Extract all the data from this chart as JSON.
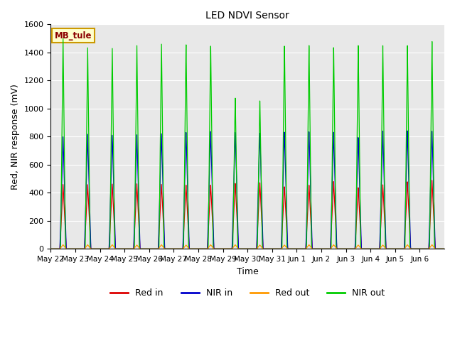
{
  "title": "LED NDVI Sensor",
  "xlabel": "Time",
  "ylabel": "Red, NIR response (mV)",
  "ylim": [
    0,
    1600
  ],
  "label_box": "MB_tule",
  "background_color": "#e8e8e8",
  "legend_entries": [
    "Red in",
    "NIR in",
    "Red out",
    "NIR out"
  ],
  "legend_colors": [
    "#dd0000",
    "#0000cc",
    "#ff9900",
    "#00cc00"
  ],
  "line_colors": {
    "red_in": "#dd0000",
    "nir_in": "#0000cc",
    "red_out": "#ff9900",
    "nir_out": "#00cc00"
  },
  "x_tick_labels": [
    "May 22",
    "May 23",
    "May 24",
    "May 25",
    "May 26",
    "May 27",
    "May 28",
    "May 29",
    "May 30",
    "May 31",
    "Jun 1",
    "Jun 2",
    "Jun 3",
    "Jun 4",
    "Jun 5",
    "Jun 6"
  ],
  "spike_peaks": {
    "red_in": [
      460,
      460,
      465,
      468,
      465,
      460,
      462,
      475,
      480,
      450,
      460,
      485,
      440,
      460,
      480,
      490
    ],
    "nir_in": [
      800,
      820,
      815,
      820,
      830,
      840,
      850,
      845,
      840,
      845,
      845,
      840,
      800,
      845,
      845,
      840
    ],
    "red_out": [
      30,
      30,
      30,
      28,
      30,
      28,
      30,
      30,
      28,
      28,
      30,
      30,
      28,
      28,
      30,
      30
    ],
    "nir_out": [
      1500,
      1440,
      1440,
      1465,
      1480,
      1480,
      1475,
      1100,
      1080,
      1475,
      1475,
      1455,
      1465,
      1460,
      1455,
      1480
    ]
  },
  "num_days": 16,
  "figsize": [
    6.4,
    4.8
  ],
  "dpi": 100
}
